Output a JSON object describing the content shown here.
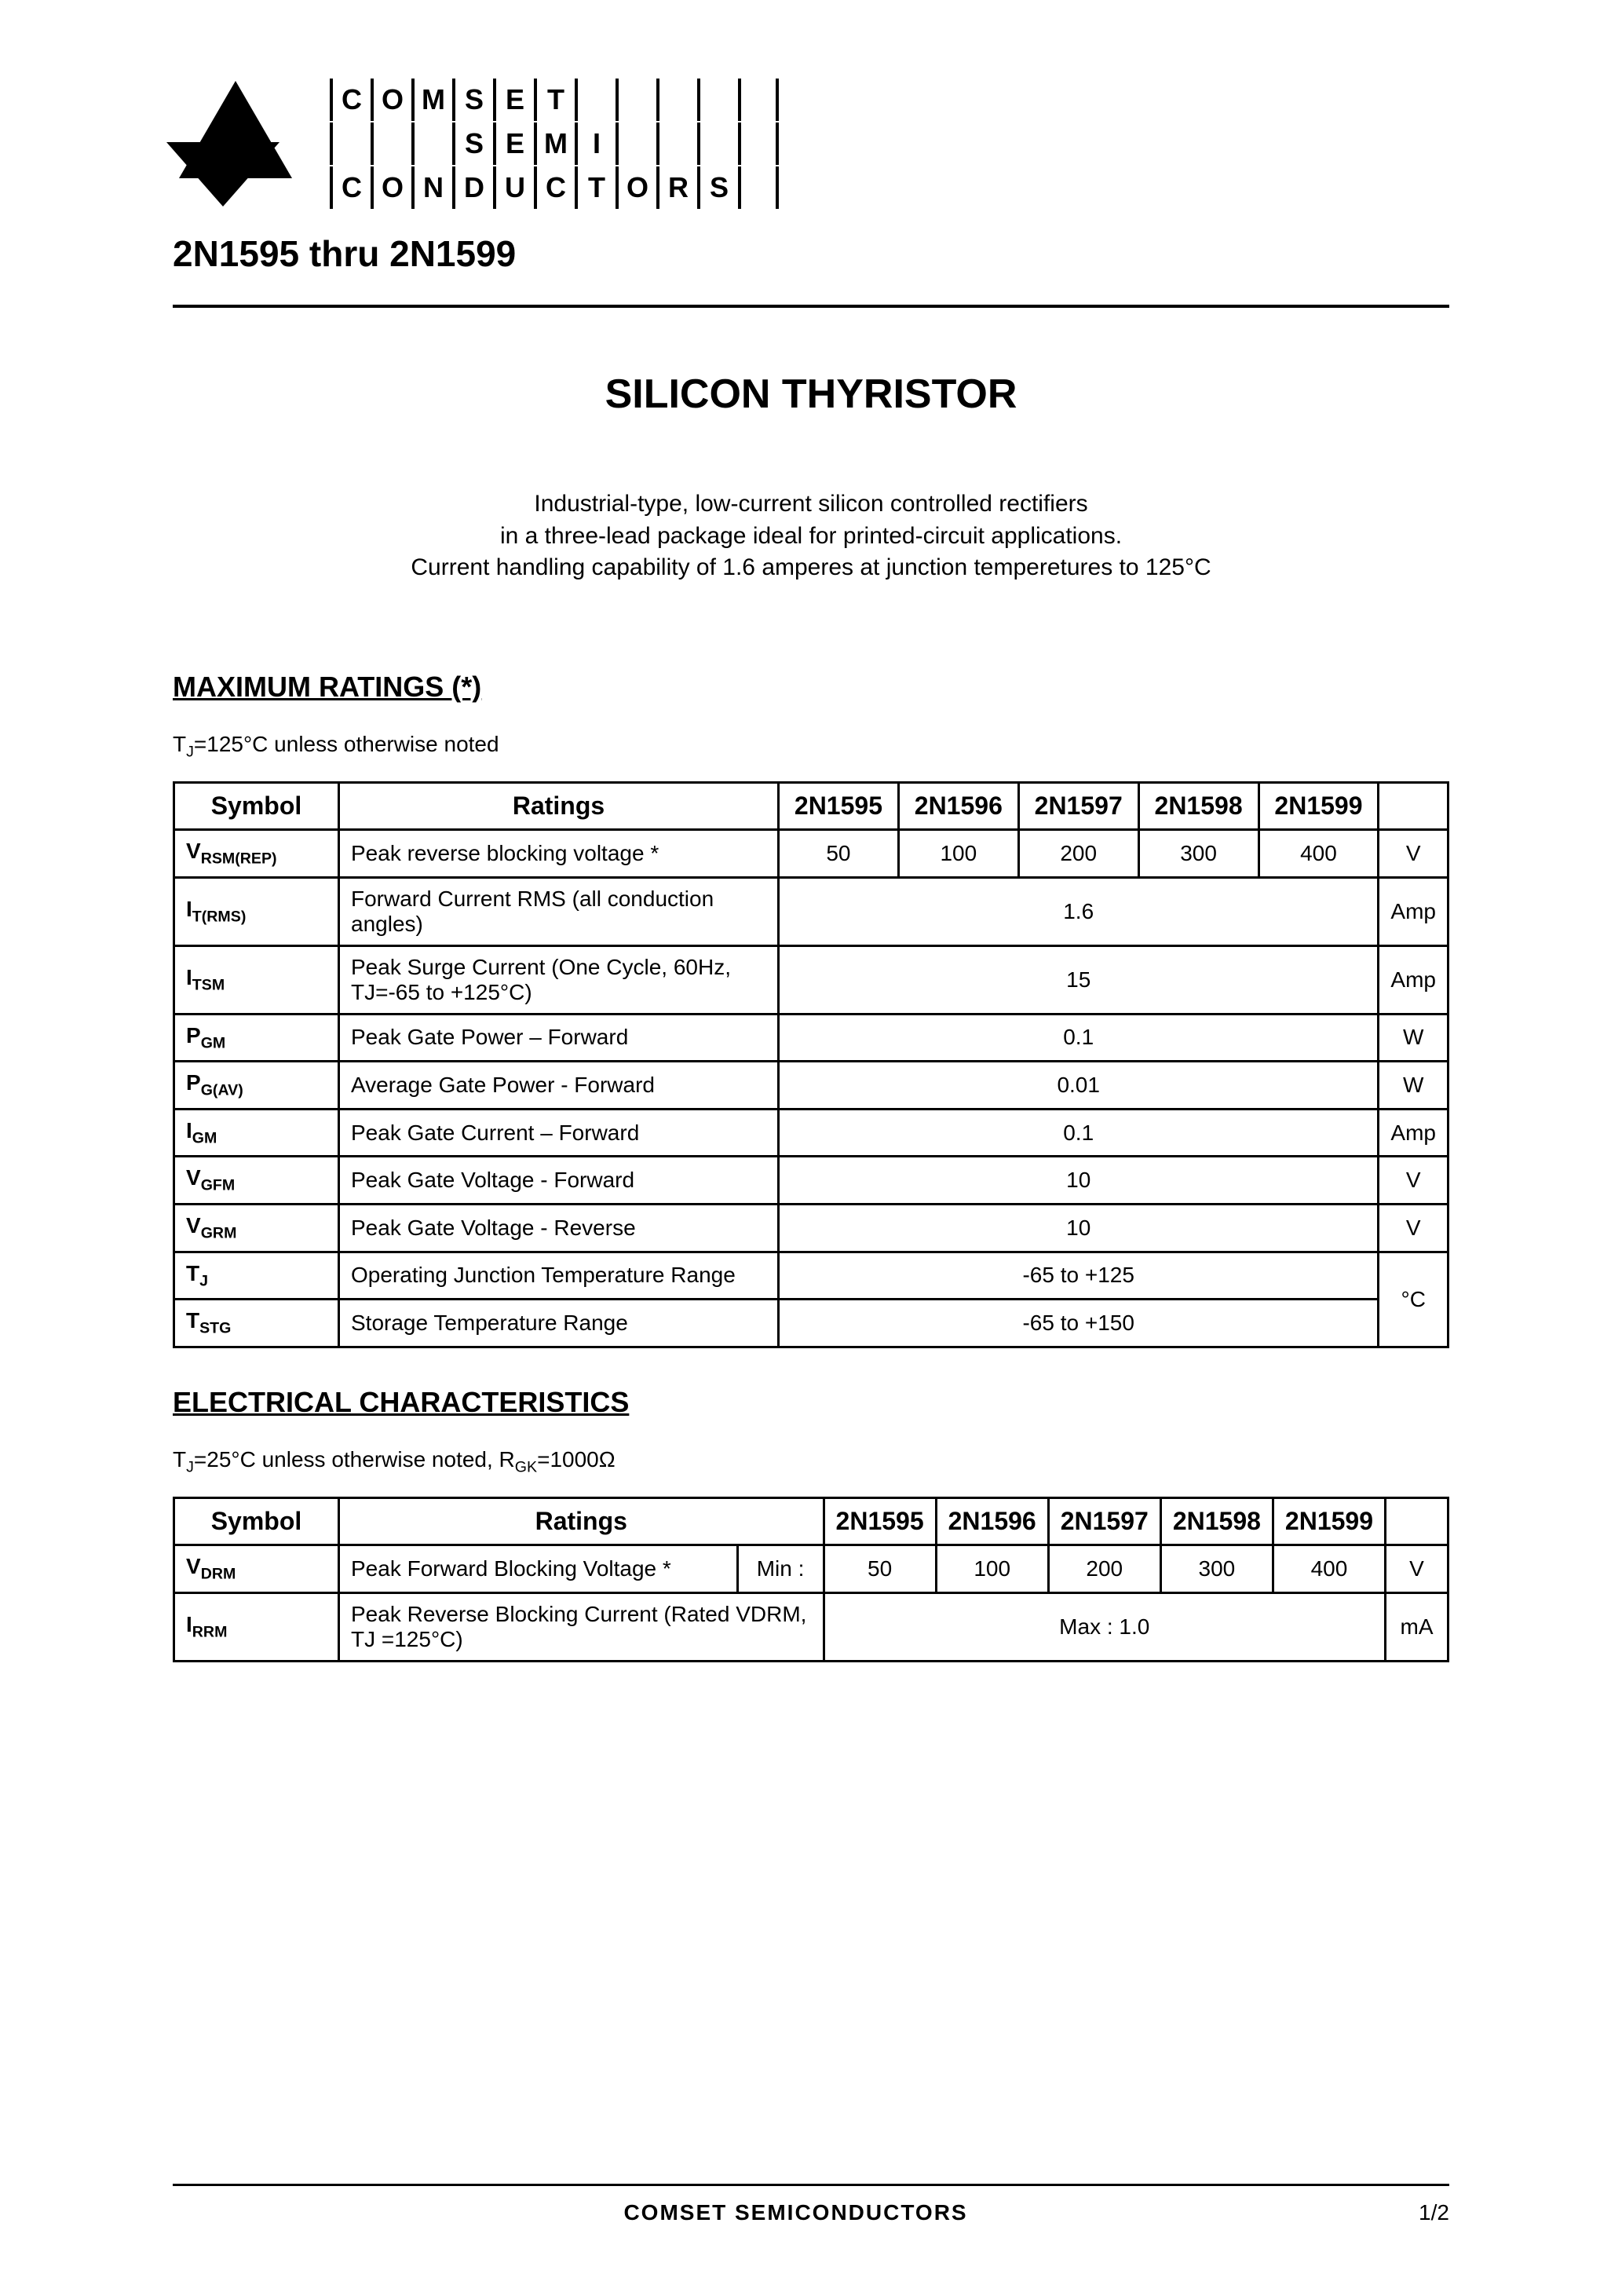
{
  "logo": {
    "rows": [
      [
        "C",
        "O",
        "M",
        "S",
        "E",
        "T",
        "",
        "",
        "",
        "",
        ""
      ],
      [
        "",
        "",
        "",
        "S",
        "E",
        "M",
        "I",
        "",
        "",
        "",
        ""
      ],
      [
        "C",
        "O",
        "N",
        "D",
        "U",
        "C",
        "T",
        "O",
        "R",
        "S",
        ""
      ]
    ]
  },
  "header": {
    "part_range": "2N1595 thru 2N1599"
  },
  "title": "SILICON THYRISTOR",
  "description": {
    "line1": "Industrial-type, low-current silicon controlled rectifiers",
    "line2": "in a three-lead package ideal for printed-circuit applications.",
    "line3": "Current handling capability of 1.6 amperes at junction temperetures to 125°C"
  },
  "sections": {
    "max_ratings": {
      "heading": "MAXIMUM RATINGS (*)",
      "note_prefix": "T",
      "note_sub": "J",
      "note_rest": "=125°C unless otherwise noted",
      "columns": {
        "symbol": "Symbol",
        "ratings": "Ratings",
        "parts": [
          "2N1595",
          "2N1596",
          "2N1597",
          "2N1598",
          "2N1599"
        ],
        "unit": ""
      },
      "rows": [
        {
          "sym_main": "V",
          "sym_sub": "RSM(REP)",
          "rating": "Peak reverse blocking voltage *",
          "vals": [
            "50",
            "100",
            "200",
            "300",
            "400"
          ],
          "span": false,
          "unit": "V"
        },
        {
          "sym_main": "I",
          "sym_sub": "T(RMS)",
          "rating": "Forward Current RMS (all conduction angles)",
          "vals": [
            "1.6"
          ],
          "span": true,
          "unit": "Amp"
        },
        {
          "sym_main": "I",
          "sym_sub": "TSM",
          "rating": "Peak Surge Current\n(One Cycle, 60Hz, TJ=-65 to +125°C)",
          "vals": [
            "15"
          ],
          "span": true,
          "unit": "Amp"
        },
        {
          "sym_main": "P",
          "sym_sub": "GM",
          "rating": "Peak Gate Power – Forward",
          "vals": [
            "0.1"
          ],
          "span": true,
          "unit": "W"
        },
        {
          "sym_main": "P",
          "sym_sub": "G(AV)",
          "rating": "Average Gate Power - Forward",
          "vals": [
            "0.01"
          ],
          "span": true,
          "unit": "W"
        },
        {
          "sym_main": "I",
          "sym_sub": "GM",
          "rating": "Peak Gate Current – Forward",
          "vals": [
            "0.1"
          ],
          "span": true,
          "unit": "Amp"
        },
        {
          "sym_main": "V",
          "sym_sub": "GFM",
          "rating": "Peak Gate Voltage - Forward",
          "vals": [
            "10"
          ],
          "span": true,
          "unit": "V"
        },
        {
          "sym_main": "V",
          "sym_sub": "GRM",
          "rating": "Peak Gate Voltage - Reverse",
          "vals": [
            "10"
          ],
          "span": true,
          "unit": "V"
        },
        {
          "sym_main": "T",
          "sym_sub": "J",
          "rating": "Operating Junction Temperature Range",
          "vals": [
            "-65 to +125"
          ],
          "span": true,
          "unit": "°C",
          "unit_rowspan": 2
        },
        {
          "sym_main": "T",
          "sym_sub": "STG",
          "rating": "Storage Temperature Range",
          "vals": [
            "-65 to +150"
          ],
          "span": true,
          "unit": null
        }
      ]
    },
    "electrical": {
      "heading": "ELECTRICAL CHARACTERISTICS",
      "note_prefix": "T",
      "note_sub": "J",
      "note_rest": "=25°C unless otherwise noted, R",
      "note_sub2": "GK",
      "note_rest2": "=1000Ω",
      "columns": {
        "symbol": "Symbol",
        "ratings": "Ratings",
        "parts": [
          "2N1595",
          "2N1596",
          "2N1597",
          "2N1598",
          "2N1599"
        ],
        "unit": ""
      },
      "rows": [
        {
          "sym_main": "V",
          "sym_sub": "DRM",
          "rating": "Peak Forward Blocking Voltage *",
          "qualifier": "Min :",
          "vals": [
            "50",
            "100",
            "200",
            "300",
            "400"
          ],
          "span": false,
          "unit": "V"
        },
        {
          "sym_main": "I",
          "sym_sub": "RRM",
          "rating": "Peak Reverse Blocking Current (Rated VDRM, TJ =125°C)",
          "qualifier": null,
          "vals": [
            "Max : 1.0"
          ],
          "span": true,
          "unit": "mA"
        }
      ]
    }
  },
  "footer": {
    "brand": "COMSET SEMICONDUCTORS",
    "page": "1/2"
  },
  "styles": {
    "page_bg": "#ffffff",
    "text_color": "#000000",
    "border_color": "#000000",
    "title_fontsize_pt": 26,
    "body_fontsize_pt": 14,
    "table_header_fontsize_pt": 16,
    "font_family": "Arial"
  }
}
